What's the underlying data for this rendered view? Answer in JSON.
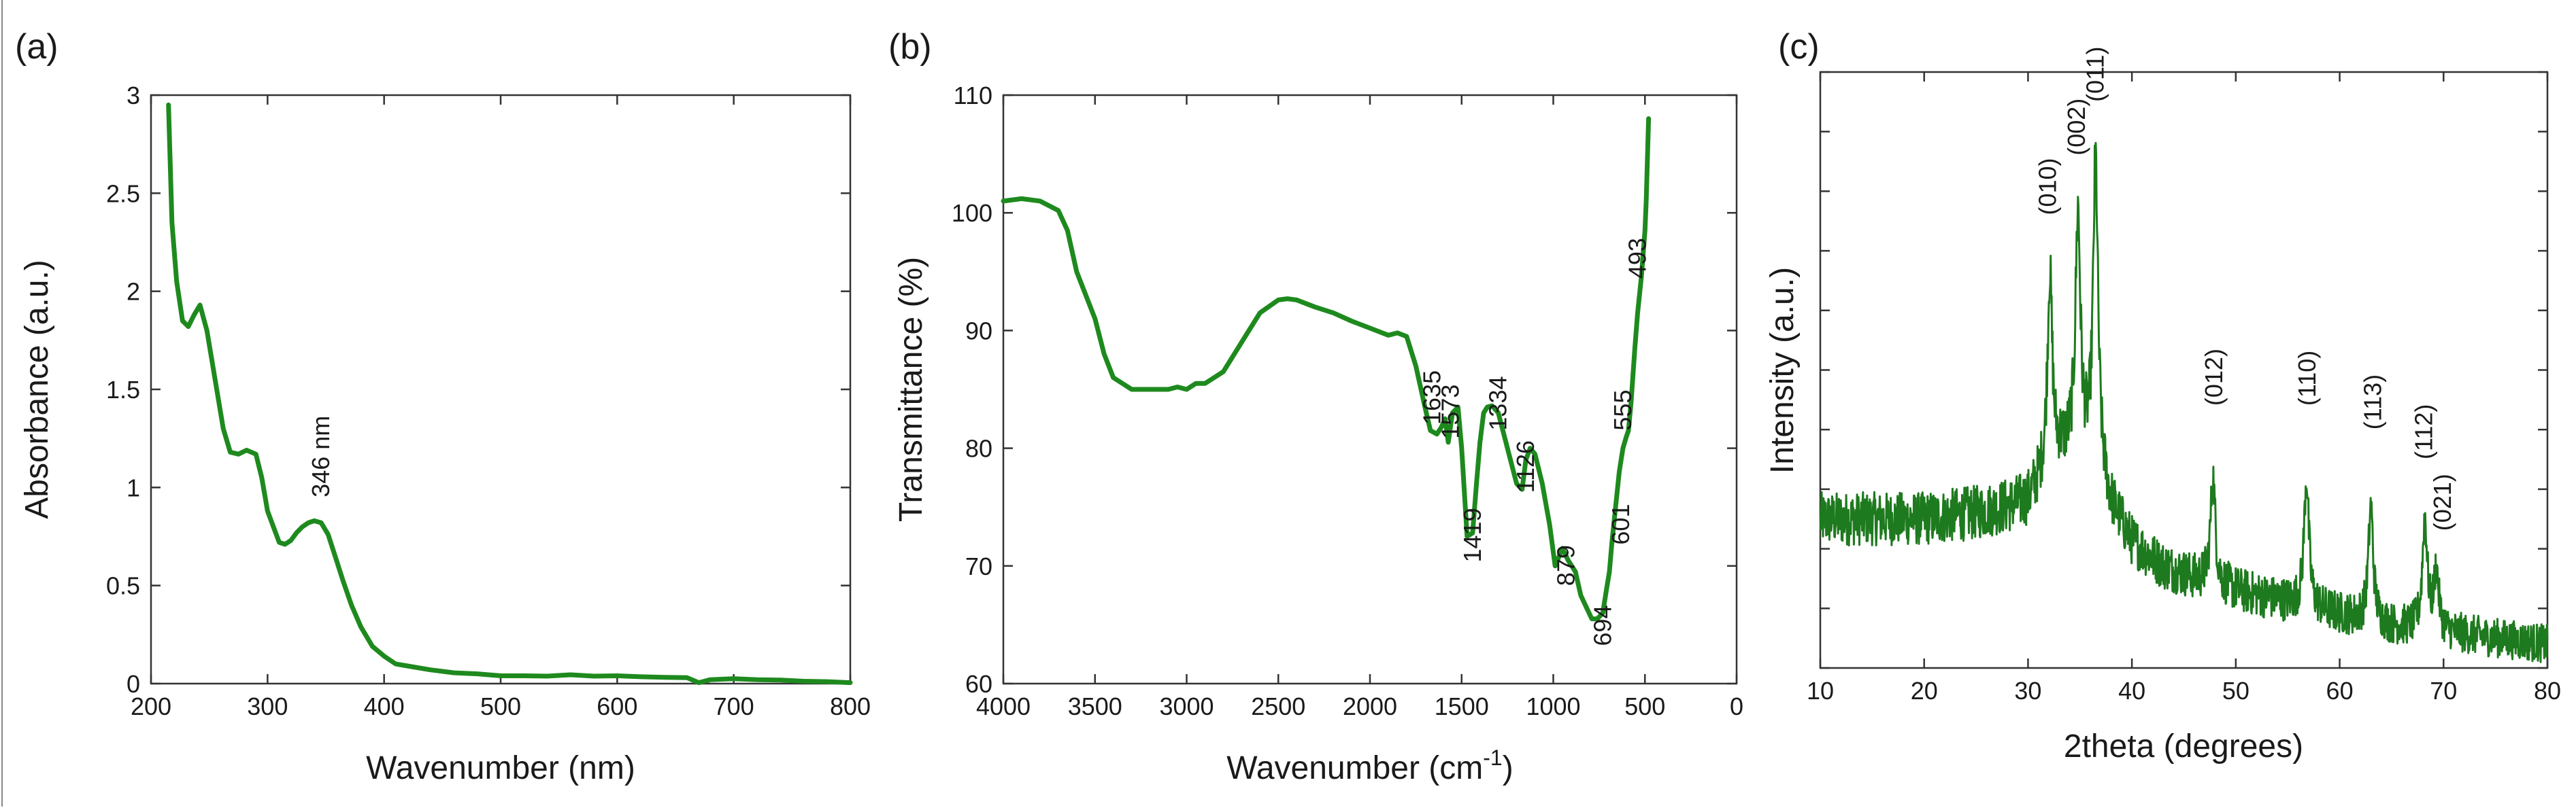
{
  "panels": [
    {
      "id": "a",
      "panel_label": "(a)",
      "chart_data": {
        "type": "line",
        "xlabel": "Wavenumber (nm)",
        "ylabel": "Absorbance (a.u.)",
        "xlim": [
          200,
          800
        ],
        "ylim": [
          0,
          3
        ],
        "xticks": [
          200,
          300,
          400,
          500,
          600,
          700,
          800
        ],
        "yticks": [
          0,
          0.5,
          1,
          1.5,
          2,
          2.5,
          3
        ],
        "xtick_labels": [
          "200",
          "300",
          "400",
          "500",
          "600",
          "700",
          "800"
        ],
        "ytick_labels": [
          "0",
          "0.5",
          "1",
          "1.5",
          "2",
          "2.5",
          "3"
        ],
        "grid": false,
        "series": [
          {
            "color": "#1e8a1e",
            "x": [
              215,
              218,
              222,
              227,
              232,
              237,
              242,
              248,
              255,
              262,
              268,
              275,
              282,
              290,
              295,
              300,
              305,
              310,
              315,
              320,
              325,
              330,
              335,
              340,
              346,
              352,
              358,
              365,
              372,
              380,
              390,
              400,
              410,
              420,
              440,
              460,
              480,
              500,
              520,
              540,
              560,
              580,
              600,
              620,
              640,
              660,
              670,
              680,
              700,
              720,
              740,
              760,
              780,
              800
            ],
            "y": [
              2.95,
              2.35,
              2.05,
              1.85,
              1.82,
              1.88,
              1.93,
              1.8,
              1.55,
              1.3,
              1.18,
              1.17,
              1.19,
              1.17,
              1.05,
              0.88,
              0.8,
              0.72,
              0.71,
              0.73,
              0.77,
              0.8,
              0.82,
              0.83,
              0.82,
              0.76,
              0.65,
              0.52,
              0.4,
              0.29,
              0.19,
              0.14,
              0.1,
              0.09,
              0.07,
              0.055,
              0.05,
              0.04,
              0.04,
              0.038,
              0.045,
              0.038,
              0.04,
              0.035,
              0.032,
              0.03,
              0.005,
              0.02,
              0.025,
              0.02,
              0.018,
              0.012,
              0.01,
              0.005
            ]
          }
        ],
        "annotations": [
          {
            "text": "346 nm",
            "x": 346,
            "y": 0.95,
            "rotate": -90
          }
        ]
      }
    },
    {
      "id": "b",
      "panel_label": "(b)",
      "chart_data": {
        "type": "line",
        "xlabel": "Wavenumber (cm",
        "xlabel_sup": "-1",
        "xlabel_tail": ")",
        "ylabel": "Transmittance (%)",
        "xlim": [
          4000,
          0
        ],
        "ylim": [
          60,
          110
        ],
        "xticks": [
          4000,
          3500,
          3000,
          2500,
          2000,
          1500,
          1000,
          500,
          0
        ],
        "yticks": [
          60,
          70,
          80,
          90,
          100,
          110
        ],
        "xtick_labels": [
          "4000",
          "3500",
          "3000",
          "2500",
          "2000",
          "1500",
          "1000",
          "500",
          "0"
        ],
        "ytick_labels": [
          "60",
          "70",
          "80",
          "90",
          "100",
          "110"
        ],
        "grid": false,
        "series": [
          {
            "color": "#1e8a1e",
            "x": [
              4000,
              3900,
              3800,
              3700,
              3650,
              3600,
              3500,
              3450,
              3400,
              3300,
              3200,
              3100,
              3050,
              3000,
              2950,
              2900,
              2800,
              2700,
              2600,
              2500,
              2450,
              2400,
              2300,
              2200,
              2100,
              2000,
              1900,
              1850,
              1800,
              1750,
              1700,
              1670,
              1635,
              1610,
              1590,
              1573,
              1550,
              1520,
              1500,
              1470,
              1440,
              1419,
              1400,
              1380,
              1360,
              1334,
              1300,
              1250,
              1200,
              1170,
              1150,
              1126,
              1100,
              1060,
              1020,
              990,
              950,
              920,
              879,
              850,
              820,
              790,
              760,
              730,
              710,
              694,
              680,
              660,
              640,
              620,
              601,
              590,
              575,
              555,
              540,
              520,
              510,
              500,
              493,
              480
            ],
            "y": [
              101,
              101.2,
              101,
              100.2,
              98.5,
              95,
              91,
              88,
              86,
              85,
              85,
              85,
              85.2,
              85,
              85.5,
              85.5,
              86.5,
              89,
              91.5,
              92.6,
              92.7,
              92.6,
              92,
              91.5,
              90.8,
              90.2,
              89.6,
              89.8,
              89.5,
              87,
              83.5,
              81.5,
              81.2,
              81.8,
              82.5,
              80.5,
              83,
              83.5,
              80,
              72.5,
              72.8,
              77,
              80.5,
              83,
              83.5,
              83.6,
              83,
              80,
              77,
              76.5,
              79,
              80,
              79.5,
              77,
              73.5,
              70,
              71.5,
              70.5,
              69.5,
              67.5,
              66.5,
              65.5,
              65.5,
              66,
              68,
              69.5,
              72,
              75,
              78,
              80,
              81,
              81.5,
              84,
              88.5,
              91.5,
              94.5,
              96.5,
              98.5,
              101,
              108
            ]
          }
        ],
        "annotations": [
          {
            "text": "1635",
            "x": 1660,
            "y": 82.0,
            "rotate": -90
          },
          {
            "text": "1573",
            "x": 1560,
            "y": 80.8,
            "rotate": -90
          },
          {
            "text": "1419",
            "x": 1440,
            "y": 70.3,
            "rotate": -90
          },
          {
            "text": "1334",
            "x": 1300,
            "y": 81.5,
            "rotate": -90
          },
          {
            "text": "1126",
            "x": 1150,
            "y": 76.2,
            "rotate": -90
          },
          {
            "text": "879",
            "x": 930,
            "y": 68.3,
            "rotate": -90
          },
          {
            "text": "694",
            "x": 730,
            "y": 63.2,
            "rotate": -90
          },
          {
            "text": "601",
            "x": 630,
            "y": 71.8,
            "rotate": -90
          },
          {
            "text": "555",
            "x": 620,
            "y": 81.5,
            "rotate": -90
          },
          {
            "text": "493",
            "x": 540,
            "y": 94.4,
            "rotate": -90
          }
        ]
      }
    },
    {
      "id": "c",
      "panel_label": "(c)",
      "chart_data": {
        "type": "line",
        "xlabel": "2theta (degrees)",
        "ylabel": "Intensity (a.u.)",
        "xlim": [
          10,
          80
        ],
        "ylim": [
          0,
          1
        ],
        "xticks": [
          10,
          20,
          30,
          40,
          50,
          60,
          70,
          80
        ],
        "xtick_labels": [
          "10",
          "20",
          "30",
          "40",
          "50",
          "60",
          "70",
          "80"
        ],
        "yticks": [
          0,
          0.1,
          0.2,
          0.3,
          0.4,
          0.5,
          0.6,
          0.7,
          0.8,
          0.9,
          1.0
        ],
        "ytick_labels": [],
        "grid": false,
        "noise_amplitude": 0.05,
        "baseline": {
          "x": [
            10,
            15,
            20,
            25,
            28,
            30,
            31,
            33,
            35,
            37,
            38,
            40,
            43,
            46,
            50,
            55,
            60,
            65,
            70,
            75,
            80
          ],
          "y": [
            0.25,
            0.25,
            0.25,
            0.26,
            0.27,
            0.28,
            0.31,
            0.36,
            0.37,
            0.32,
            0.27,
            0.21,
            0.17,
            0.15,
            0.13,
            0.11,
            0.09,
            0.07,
            0.06,
            0.05,
            0.04
          ]
        },
        "series": [
          {
            "color": "#1e7a1e",
            "peaks": [
              {
                "label": "(010)",
                "x": 32.1,
                "y": 0.66
              },
              {
                "label": "(002)",
                "x": 34.8,
                "y": 0.76
              },
              {
                "label": "(011)",
                "x": 36.5,
                "y": 0.85
              },
              {
                "label": "(012)",
                "x": 47.8,
                "y": 0.32
              },
              {
                "label": "(110)",
                "x": 56.8,
                "y": 0.32
              },
              {
                "label": "(113)",
                "x": 63.0,
                "y": 0.27
              },
              {
                "label": "(112)",
                "x": 68.2,
                "y": 0.25
              },
              {
                "label": "(021)",
                "x": 69.3,
                "y": 0.16
              }
            ]
          }
        ],
        "annotations": [
          {
            "text": "(010)",
            "x": 31.9,
            "y": 0.76,
            "rotate": -90
          },
          {
            "text": "(002)",
            "x": 34.7,
            "y": 0.86,
            "rotate": -90
          },
          {
            "text": "(011)",
            "x": 36.5,
            "y": 0.95,
            "rotate": -90
          },
          {
            "text": "(012)",
            "x": 47.9,
            "y": 0.44,
            "rotate": -90
          },
          {
            "text": "(110)",
            "x": 56.9,
            "y": 0.44,
            "rotate": -90
          },
          {
            "text": "(113)",
            "x": 63.2,
            "y": 0.4,
            "rotate": -90
          },
          {
            "text": "(112)",
            "x": 68.1,
            "y": 0.35,
            "rotate": -90
          },
          {
            "text": "(021)",
            "x": 69.9,
            "y": 0.23,
            "rotate": -90
          }
        ]
      }
    }
  ]
}
